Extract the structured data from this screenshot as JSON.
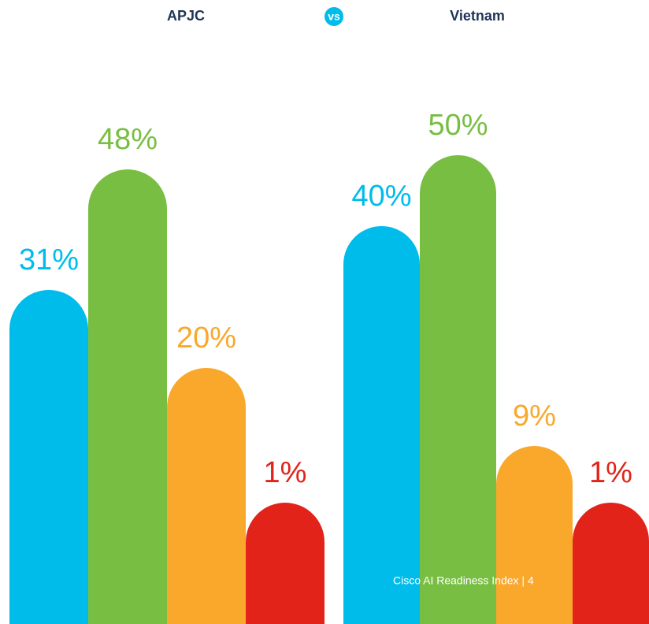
{
  "chart_data": {
    "type": "bar",
    "groups": [
      {
        "name": "APJC",
        "values": [
          31,
          48,
          20,
          1
        ],
        "value_labels": [
          "31%",
          "48%",
          "20%",
          "1%"
        ]
      },
      {
        "name": "Vietnam",
        "values": [
          40,
          50,
          9,
          1
        ],
        "value_labels": [
          "40%",
          "50%",
          "9%",
          "1%"
        ]
      }
    ],
    "colors": [
      "#00bceb",
      "#78be43",
      "#f9a82c",
      "#e2231a"
    ],
    "vs": "vs",
    "footer": "Cisco AI Readiness Index  |  4"
  }
}
